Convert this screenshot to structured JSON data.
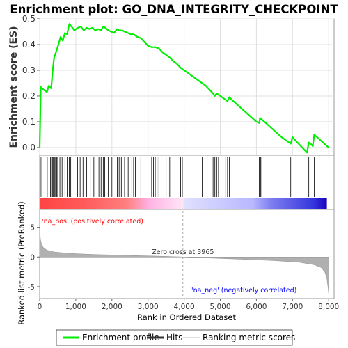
{
  "chart_data": {
    "type": "line",
    "title": "Enrichment plot: GO_DNA_INTEGRITY_CHECKPOINT",
    "top_panel": {
      "ylabel": "Enrichment score (ES)",
      "ylim": [
        -0.03,
        0.5
      ],
      "yticks": [
        "0.0",
        "0.1",
        "0.2",
        "0.3",
        "0.4",
        "0.5"
      ],
      "ytick_values": [
        0.0,
        0.1,
        0.2,
        0.3,
        0.4,
        0.5
      ],
      "grid": true,
      "series": [
        {
          "name": "Enrichment profile",
          "color": "#00ee00",
          "x": [
            0,
            30,
            60,
            200,
            250,
            320,
            360,
            400,
            450,
            520,
            580,
            640,
            700,
            760,
            820,
            880,
            960,
            1060,
            1140,
            1220,
            1300,
            1380,
            1460,
            1540,
            1620,
            1700,
            1760,
            1820,
            1900,
            1980,
            2060,
            2140,
            2200,
            2280,
            2360,
            2440,
            2520,
            2600,
            2700,
            2800,
            2900,
            3000,
            3100,
            3200,
            3300,
            3400,
            3500,
            3600,
            3700,
            3800,
            3900,
            4000,
            4200,
            4400,
            4600,
            4800,
            4850,
            4900,
            5000,
            5100,
            5200,
            5250,
            5400,
            5600,
            5800,
            6000,
            6080,
            6100,
            6300,
            6500,
            6700,
            6950,
            7000,
            7200,
            7400,
            7450,
            7500,
            7560,
            7600,
            7800,
            8000
          ],
          "y": [
            0.0,
            0.235,
            0.23,
            0.215,
            0.24,
            0.23,
            0.3,
            0.35,
            0.37,
            0.4,
            0.43,
            0.415,
            0.445,
            0.44,
            0.48,
            0.47,
            0.455,
            0.465,
            0.47,
            0.455,
            0.465,
            0.46,
            0.465,
            0.455,
            0.46,
            0.455,
            0.47,
            0.465,
            0.455,
            0.45,
            0.445,
            0.46,
            0.455,
            0.455,
            0.45,
            0.445,
            0.44,
            0.44,
            0.43,
            0.425,
            0.41,
            0.395,
            0.39,
            0.39,
            0.385,
            0.37,
            0.36,
            0.35,
            0.335,
            0.325,
            0.31,
            0.3,
            0.28,
            0.26,
            0.24,
            0.21,
            0.2,
            0.21,
            0.2,
            0.19,
            0.18,
            0.195,
            0.175,
            0.15,
            0.125,
            0.1,
            0.095,
            0.115,
            0.09,
            0.065,
            0.04,
            0.015,
            0.04,
            0.01,
            -0.02,
            0.02,
            0.015,
            0.005,
            0.05,
            0.025,
            0.0
          ]
        }
      ]
    },
    "hits": [
      20,
      60,
      210,
      300,
      330,
      350,
      370,
      390,
      410,
      440,
      470,
      500,
      560,
      620,
      700,
      760,
      820,
      860,
      1050,
      1120,
      1200,
      1300,
      1400,
      1500,
      1640,
      1700,
      1760,
      1800,
      1900,
      2000,
      2150,
      2200,
      2260,
      2350,
      2450,
      2550,
      2600,
      2650,
      2800,
      3100,
      3150,
      3200,
      3250,
      3300,
      3500,
      3600,
      3900,
      3950,
      4500,
      4800,
      4850,
      4900,
      4950,
      5150,
      5200,
      5250,
      6080,
      6120,
      6150,
      6950,
      7450,
      7600
    ],
    "bottom_panel": {
      "ylabel": "Ranked list metric (PreRanked)",
      "ylim": [
        -7,
        8
      ],
      "yticks": [
        "-5",
        "0",
        "5"
      ],
      "ytick_values": [
        -5,
        0,
        5
      ],
      "metric_curve": {
        "x": [
          0,
          20,
          50,
          100,
          200,
          400,
          800,
          1500,
          2500,
          3500,
          3965,
          4500,
          5500,
          6500,
          7200,
          7600,
          7800,
          7900,
          7950,
          7990,
          8000
        ],
        "y": [
          5.2,
          3.0,
          2.2,
          1.6,
          1.15,
          0.85,
          0.62,
          0.42,
          0.25,
          0.1,
          0.0,
          -0.12,
          -0.35,
          -0.6,
          -0.9,
          -1.3,
          -1.8,
          -2.6,
          -3.6,
          -5.5,
          -6.2
        ]
      },
      "zero_cross_label": "Zero cross at 3965",
      "zero_cross_x": 3965,
      "pos_label": "'na_pos' (positively correlated)",
      "neg_label": "'na_neg' (negatively correlated)",
      "pos_color": "#ff0000",
      "neg_color": "#0000ff"
    },
    "xlabel": "Rank in Ordered Dataset",
    "xlim": [
      0,
      8150
    ],
    "xticks": [
      "0",
      "1,000",
      "2,000",
      "3,000",
      "4,000",
      "5,000",
      "6,000",
      "7,000",
      "8,000"
    ],
    "xtick_values": [
      0,
      1000,
      2000,
      3000,
      4000,
      5000,
      6000,
      7000,
      8000
    ],
    "heatmap_stops": [
      {
        "x": 0,
        "color": "#ff4444"
      },
      {
        "x": 1200,
        "color": "#ff5a5a"
      },
      {
        "x": 2400,
        "color": "#ff7f7f"
      },
      {
        "x": 3050,
        "color": "#ffb3e6"
      },
      {
        "x": 3965,
        "color": "#ffe6f5"
      },
      {
        "x": 4000,
        "color": "#e0e0ff"
      },
      {
        "x": 5900,
        "color": "#b8b8ff"
      },
      {
        "x": 6400,
        "color": "#7f7ff0"
      },
      {
        "x": 7600,
        "color": "#3333dd"
      },
      {
        "x": 7950,
        "color": "#1a00bb"
      }
    ]
  },
  "legend": {
    "items": [
      {
        "label": "Enrichment profile",
        "color": "#00ee00"
      },
      {
        "label": "Hits",
        "color": "#333333"
      },
      {
        "label": "Ranking metric scores",
        "color": "#cccccc"
      }
    ]
  }
}
